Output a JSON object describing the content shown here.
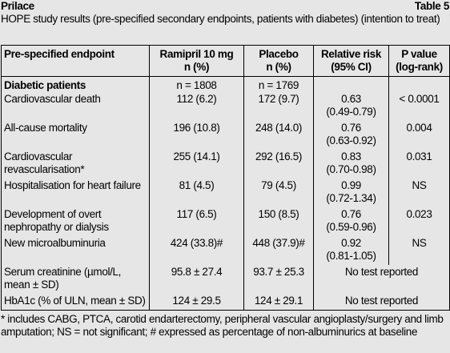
{
  "header": {
    "section": "Prilace",
    "table_number": "Table 5",
    "caption": "HOPE study results (pre-specified secondary endpoints, patients with diabetes) (intention to treat)"
  },
  "table": {
    "columns": [
      [
        "Pre-specified endpoint"
      ],
      [
        "Ramipril 10 mg",
        "n (%)"
      ],
      [
        "Placebo",
        "n (%)"
      ],
      [
        "Relative risk",
        "(95% CI)"
      ],
      [
        "P value",
        "(log-rank)"
      ]
    ],
    "group_row": {
      "label": "Diabetic patients",
      "ramipril": "n = 1808",
      "placebo": "n = 1769"
    },
    "rows": [
      {
        "endpoint": "Cardiovascular death",
        "ramipril": "112 (6.2)",
        "placebo": "172 (9.7)",
        "rr": "0.63",
        "ci": "(0.49-0.79)",
        "p": "< 0.0001"
      },
      {
        "endpoint": "All-cause mortality",
        "ramipril": "196 (10.8)",
        "placebo": "248 (14.0)",
        "rr": "0.76",
        "ci": "(0.63-0.92)",
        "p": "0.004"
      },
      {
        "endpoint": "Cardiovascular revascularisation*",
        "ramipril": "255 (14.1)",
        "placebo": "292 (16.5)",
        "rr": "0.83",
        "ci": "(0.70-0.98)",
        "p": "0.031"
      },
      {
        "endpoint": "Hospitalisation for heart failure",
        "ramipril": "81 (4.5)",
        "placebo": "79 (4.5)",
        "rr": "0.99",
        "ci": "(0.72-1.34)",
        "p": "NS"
      },
      {
        "endpoint": "Development of overt nephropathy or dialysis",
        "ramipril": "117 (6.5)",
        "placebo": "150 (8.5)",
        "rr": "0.76",
        "ci": "(0.59-0.96)",
        "p": "0.023"
      },
      {
        "endpoint": "New microalbuminuria",
        "ramipril": "424 (33.8)#",
        "placebo": "448 (37.9)#",
        "rr": "0.92",
        "ci": "(0.81-1.05)",
        "p": "NS"
      },
      {
        "endpoint": "Serum creatinine (µmol/L, mean ± SD)",
        "ramipril": "95.8 ± 27.4",
        "placebo": "93.7 ± 25.3",
        "note": "No test reported"
      },
      {
        "endpoint": "HbA1c (% of ULN, mean ± SD)",
        "ramipril": "124 ± 29.5",
        "placebo": "124 ± 29.1",
        "note": "No test reported"
      }
    ]
  },
  "footnote": "* includes CABG, PTCA, carotid endarterectomy, peripheral vascular angioplasty/surgery and limb amputation; NS = not significant; # expressed as percentage of non-albuminurics at baseline"
}
